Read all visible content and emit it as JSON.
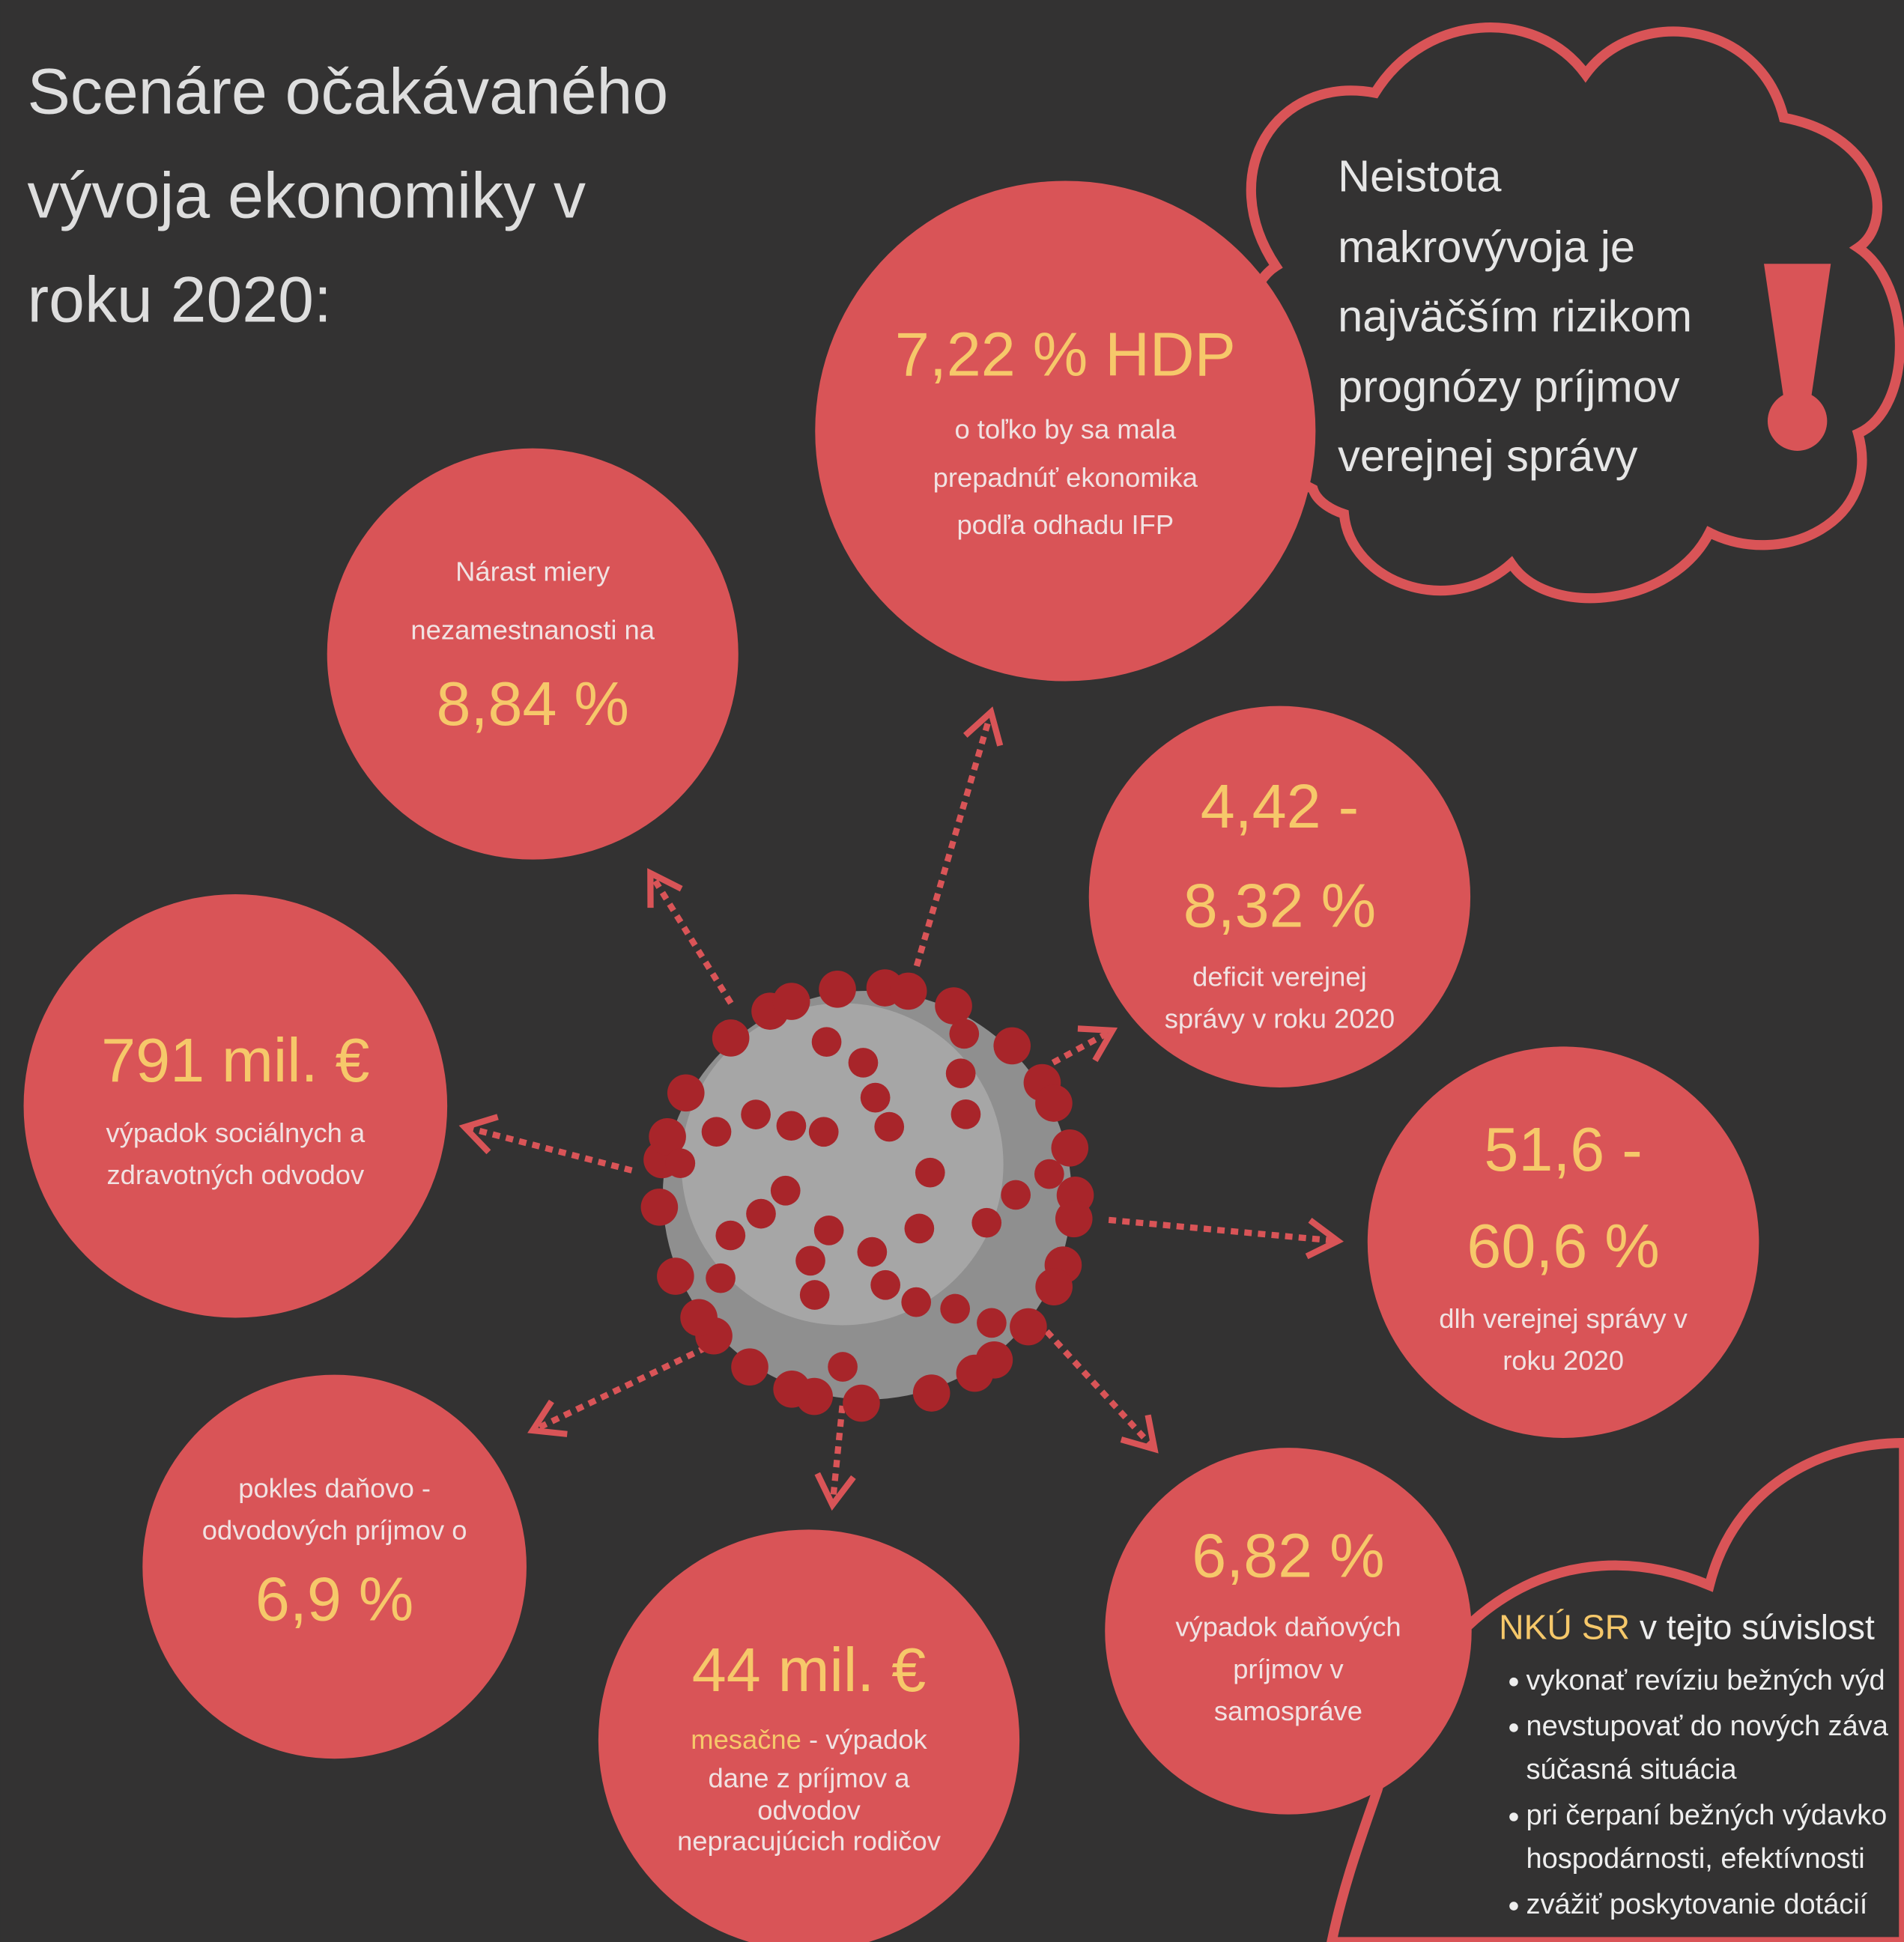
{
  "title": [
    "Scenáre očakávaného",
    "vývoja ekonomiky v",
    "roku 2020:"
  ],
  "warning": [
    "Neistota",
    "makrovývoja je",
    "najväčším rizikom",
    "prognózy príjmov",
    "verejnej správy"
  ],
  "circles": [
    {
      "lines": [
        [
          {
            "text": "7,22 % HDP",
            "kind": "value"
          }
        ],
        [
          {
            "text": "o toľko by sa mala",
            "kind": "desc"
          }
        ],
        [
          {
            "text": "prepadnúť ekonomika",
            "kind": "desc"
          }
        ],
        [
          {
            "text": "podľa odhadu IFP",
            "kind": "desc"
          }
        ]
      ]
    },
    {
      "lines": [
        [
          {
            "text": "Nárast miery",
            "kind": "desc"
          }
        ],
        [
          {
            "text": "nezamestnanosti na",
            "kind": "desc"
          }
        ],
        [
          {
            "text": "8,84 %",
            "kind": "value"
          }
        ]
      ]
    },
    {
      "lines": [
        [
          {
            "text": "4,42 -",
            "kind": "value"
          }
        ],
        [
          {
            "text": "8,32 %",
            "kind": "value"
          }
        ],
        [
          {
            "text": "deficit verejnej",
            "kind": "desc"
          }
        ],
        [
          {
            "text": "správy v roku 2020",
            "kind": "desc"
          }
        ]
      ]
    },
    {
      "lines": [
        [
          {
            "text": "791 mil. €",
            "kind": "value"
          }
        ],
        [
          {
            "text": "výpadok sociálnych a",
            "kind": "desc"
          }
        ],
        [
          {
            "text": "zdravotných odvodov",
            "kind": "desc"
          }
        ]
      ]
    },
    {
      "lines": [
        [
          {
            "text": "51,6 -",
            "kind": "value"
          }
        ],
        [
          {
            "text": "60,6 %",
            "kind": "value"
          }
        ],
        [
          {
            "text": "dlh verejnej správy v",
            "kind": "desc"
          }
        ],
        [
          {
            "text": "roku 2020",
            "kind": "desc"
          }
        ]
      ]
    },
    {
      "lines": [
        [
          {
            "text": "pokles daňovo -",
            "kind": "desc"
          }
        ],
        [
          {
            "text": "odvodových príjmov o",
            "kind": "desc"
          }
        ],
        [
          {
            "text": "6,9 %",
            "kind": "value"
          }
        ]
      ]
    },
    {
      "lines": [
        [
          {
            "text": "44 mil. €",
            "kind": "value"
          }
        ],
        [
          {
            "text": "mesačne",
            "kind": "accent"
          },
          {
            "text": " - výpadok",
            "kind": "desc"
          }
        ],
        [
          {
            "text": "dane z príjmov a",
            "kind": "desc"
          }
        ],
        [
          {
            "text": "odvodov",
            "kind": "desc"
          }
        ],
        [
          {
            "text": "nepracujúcich rodičov",
            "kind": "desc"
          }
        ]
      ]
    },
    {
      "lines": [
        [
          {
            "text": "6,82 %",
            "kind": "value"
          }
        ],
        [
          {
            "text": "výpadok daňových",
            "kind": "desc"
          }
        ],
        [
          {
            "text": "príjmov v",
            "kind": "desc"
          }
        ],
        [
          {
            "text": "samospráve",
            "kind": "desc"
          }
        ]
      ]
    }
  ],
  "nku": {
    "lead": "NKÚ SR",
    "lead_rest": " v tejto súvislost",
    "items": [
      [
        "vykonať revíziu bežných výd"
      ],
      [
        "nevstupovať do nových záva",
        "súčasná situácia"
      ],
      [
        "pri čerpaní bežných výdavko",
        "hospodárnosti, efektívnosti"
      ],
      [
        "zvážiť poskytovanie dotácií"
      ]
    ]
  }
}
